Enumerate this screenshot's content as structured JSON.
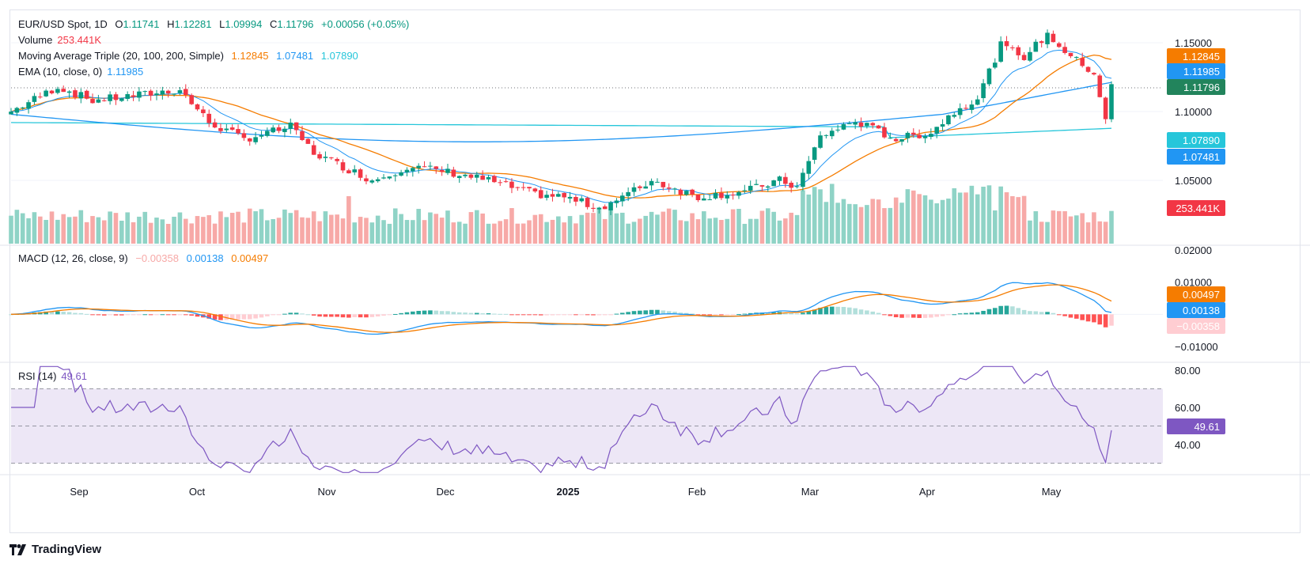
{
  "header": {
    "symbol": "EUR/USD Spot, 1D",
    "o_label": "O",
    "o": "1.11741",
    "h_label": "H",
    "h": "1.12281",
    "l_label": "L",
    "l": "1.09994",
    "c_label": "C",
    "c": "1.11796",
    "change": "+0.00056 (+0.05%)"
  },
  "indicators": {
    "volume_label": "Volume",
    "volume_value": "253.441K",
    "ma_label": "Moving Average Triple (20, 100, 200, Simple)",
    "ma20": "1.12845",
    "ma100": "1.07481",
    "ma200": "1.07890",
    "ema_label": "EMA (10, close, 0)",
    "ema_value": "1.11985",
    "macd_label": "MACD (12, 26, close, 9)",
    "macd_hist": "−0.00358",
    "macd_line": "0.00138",
    "macd_signal": "0.00497",
    "rsi_label": "RSI (14)",
    "rsi_value": "49.61"
  },
  "price_axis": [
    "1.15000",
    "1.10000",
    "1.05000"
  ],
  "macd_axis": [
    "0.02000",
    "0.01000",
    "−0.01000"
  ],
  "rsi_axis": [
    "80.00",
    "60.00",
    "40.00"
  ],
  "time_axis": [
    {
      "label": "Sep",
      "bold": false
    },
    {
      "label": "Oct",
      "bold": false
    },
    {
      "label": "Nov",
      "bold": false
    },
    {
      "label": "Dec",
      "bold": false
    },
    {
      "label": "2025",
      "bold": true
    },
    {
      "label": "Feb",
      "bold": false
    },
    {
      "label": "Mar",
      "bold": false
    },
    {
      "label": "Apr",
      "bold": false
    },
    {
      "label": "May",
      "bold": false
    }
  ],
  "badges": {
    "ma20": "1.12845",
    "ema": "1.11985",
    "close": "1.11796",
    "ma200": "1.07890",
    "ma100": "1.07481",
    "volume": "253.441K",
    "signal": "0.00497",
    "macd": "0.00138",
    "hist": "−0.00358",
    "rsi": "49.61"
  },
  "colors": {
    "up": "#089981",
    "down": "#f23645",
    "vol_up": "#8fd3c6",
    "vol_down": "#f7a9a7",
    "ma20": "#f57c00",
    "ma100": "#2196f3",
    "ma200": "#26c6da",
    "ema": "#2196f3",
    "macd": "#2196f3",
    "signal": "#f57c00",
    "rsi": "#7e57c2",
    "rsi_band": "#ede7f6"
  },
  "brand": "TradingView",
  "chart_data": {
    "type": "candlestick",
    "symbol": "EUR/USD",
    "interval": "1D",
    "approx_close_path": [
      [
        "Aug",
        1.1
      ],
      [
        "Aug",
        1.118
      ],
      [
        "Sep",
        1.108
      ],
      [
        "Sep",
        1.112
      ],
      [
        "Oct",
        1.116
      ],
      [
        "Oct",
        1.094
      ],
      [
        "Oct",
        1.08
      ],
      [
        "Nov",
        1.088
      ],
      [
        "Nov",
        1.062
      ],
      [
        "Nov",
        1.05
      ],
      [
        "Dec",
        1.058
      ],
      [
        "Dec",
        1.05
      ],
      [
        "Dec",
        1.04
      ],
      [
        "2025",
        1.03
      ],
      [
        "Jan",
        1.025
      ],
      [
        "Jan",
        1.04
      ],
      [
        "Feb",
        1.038
      ],
      [
        "Feb",
        1.04
      ],
      [
        "Feb",
        1.048
      ],
      [
        "Mar",
        1.082
      ],
      [
        "Mar",
        1.09
      ],
      [
        "Mar",
        1.08
      ],
      [
        "Apr",
        1.095
      ],
      [
        "Apr",
        1.135
      ],
      [
        "Apr",
        1.15
      ],
      [
        "May",
        1.13
      ],
      [
        "May",
        1.118
      ]
    ],
    "price_range": [
      1.02,
      1.16
    ],
    "macd_range": [
      -0.012,
      0.021
    ],
    "rsi_range": [
      20,
      85
    ],
    "rsi_levels": [
      70,
      50,
      30
    ]
  }
}
